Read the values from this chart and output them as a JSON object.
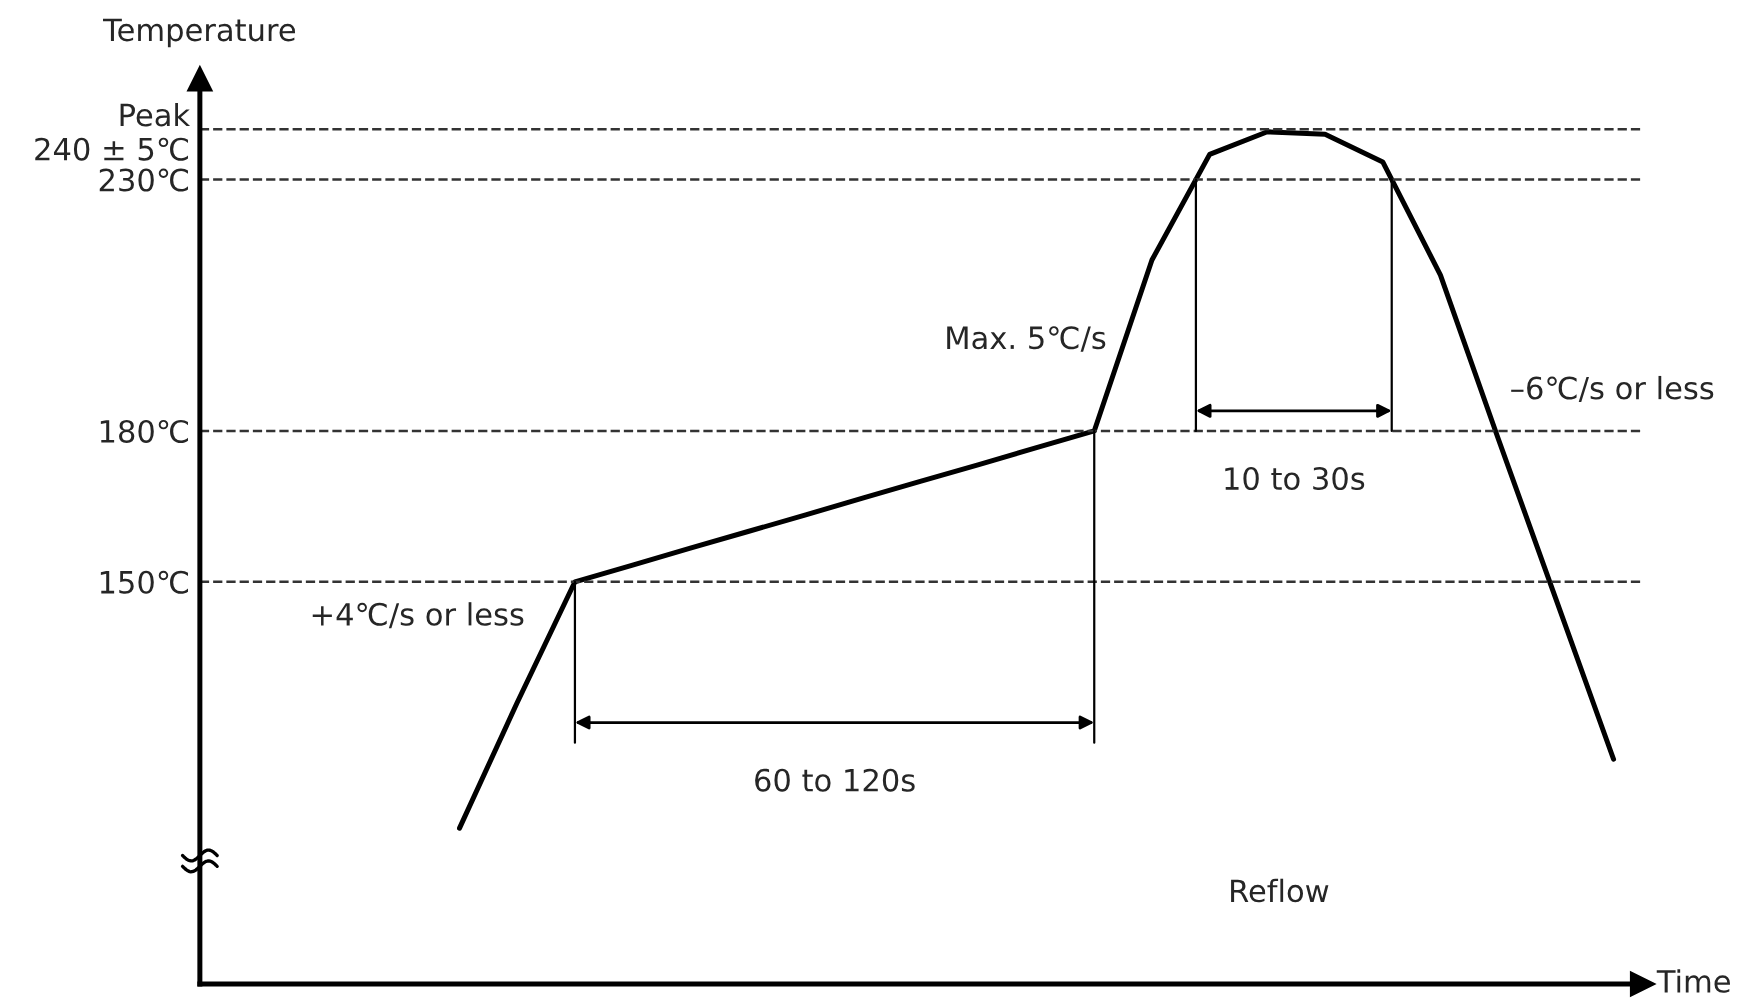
{
  "chart_data": {
    "type": "line",
    "xlabel": "Time",
    "ylabel": "Temperature",
    "categories": [
      null,
      null,
      null,
      null,
      null,
      null,
      null,
      null,
      null,
      null,
      null,
      null,
      null,
      null,
      null,
      null,
      null,
      null,
      null,
      null,
      null,
      null,
      null,
      null,
      null
    ],
    "values": [
      null,
      null,
      null,
      null,
      101,
      126,
      150,
      153.3,
      156.7,
      160,
      163.3,
      166.7,
      170,
      173.3,
      176.7,
      180,
      214,
      235,
      239.5,
      239,
      233.5,
      211,
      178.5,
      146.6,
      114.7
    ],
    "color": "#000000",
    "line_style": "solid",
    "marker": "none",
    "ylim": [
      70,
      250
    ],
    "yticks": [
      {
        "value": 150,
        "label": "150℃"
      },
      {
        "value": 180,
        "label": "180℃"
      },
      {
        "value": 230,
        "label": "230℃"
      },
      {
        "value": 240,
        "label": "Peak\n240 ± 5℃"
      }
    ],
    "tick_labels": "y",
    "grid": false,
    "ref_lines": [
      {
        "axis": "y",
        "value": 150,
        "line_style": "dashed"
      },
      {
        "axis": "y",
        "value": 180,
        "line_style": "dashed"
      },
      {
        "axis": "y",
        "value": 230,
        "line_style": "dashed"
      },
      {
        "axis": "y",
        "value": 240,
        "line_style": "dashed"
      }
    ],
    "annotations": [
      "+4℃/s or less",
      "Max. 5℃/s",
      "–6℃/s or less",
      "60 to 120s",
      "10 to 30s",
      "Reflow"
    ]
  }
}
